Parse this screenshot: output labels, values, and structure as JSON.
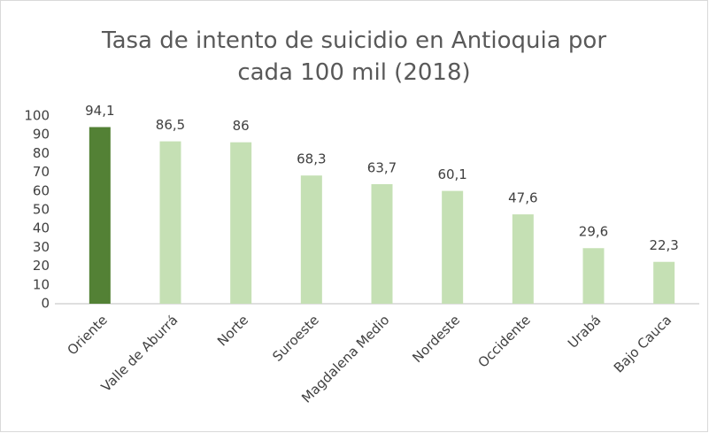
{
  "chart_data": {
    "type": "bar",
    "title": "Tasa de intento de suicidio en Antioquia por cada 100 mil (2018)",
    "categories": [
      "Oriente",
      "Valle de Aburrá",
      "Norte",
      "Suroeste",
      "Magdalena Medio",
      "Nordeste",
      "Occidente",
      "Urabá",
      "Bajo Cauca"
    ],
    "values": [
      94.1,
      86.5,
      86,
      68.3,
      63.7,
      60.1,
      47.6,
      29.6,
      22.3
    ],
    "value_labels": [
      "94,1",
      "86,5",
      "86",
      "68,3",
      "63,7",
      "60,1",
      "47,6",
      "29,6",
      "22,3"
    ],
    "colors": [
      "#538135",
      "#c5e0b4",
      "#c5e0b4",
      "#c5e0b4",
      "#c5e0b4",
      "#c5e0b4",
      "#c5e0b4",
      "#c5e0b4",
      "#c5e0b4"
    ],
    "ylim": [
      0,
      100
    ],
    "yticks": [
      0,
      10,
      20,
      30,
      40,
      50,
      60,
      70,
      80,
      90,
      100
    ],
    "grid": false
  }
}
